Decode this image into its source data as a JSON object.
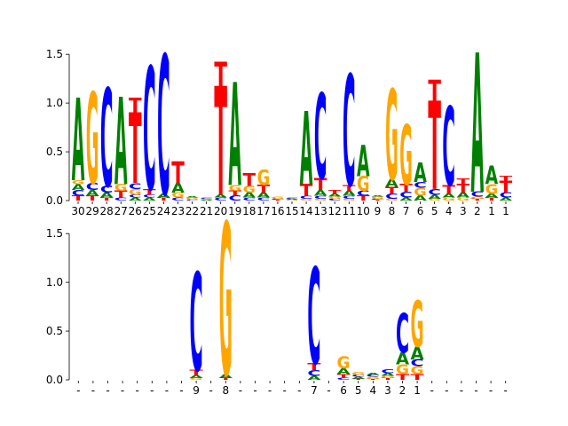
{
  "chart_data": [
    {
      "type": "sequence-logo",
      "ylim": [
        0,
        1.62
      ],
      "yticks": [
        0.0,
        0.5,
        1.0,
        1.5
      ],
      "ytick_labels": [
        "0.0",
        "0.5",
        "1.0",
        "1.5"
      ],
      "grid": false,
      "colors": {
        "A": "#008000",
        "C": "#0000ff",
        "G": "#ffa500",
        "T": "#ff0000"
      },
      "positions": [
        {
          "label": "30",
          "letters": [
            [
              "T",
              0.05
            ],
            [
              "C",
              0.06
            ],
            [
              "A",
              0.06
            ],
            [
              "G",
              0.04
            ],
            [
              "A",
              0.84
            ]
          ]
        },
        {
          "label": "29",
          "letters": [
            [
              "T",
              0.05
            ],
            [
              "A",
              0.06
            ],
            [
              "C",
              0.07
            ],
            [
              "G",
              0.93
            ]
          ]
        },
        {
          "label": "28",
          "letters": [
            [
              "T",
              0.03
            ],
            [
              "A",
              0.05
            ],
            [
              "C",
              0.07
            ],
            [
              "C",
              1.0
            ]
          ]
        },
        {
          "label": "27",
          "letters": [
            [
              "C",
              0.03
            ],
            [
              "T",
              0.07
            ],
            [
              "G",
              0.07
            ],
            [
              "A",
              0.89
            ]
          ]
        },
        {
          "label": "26",
          "letters": [
            [
              "A",
              0.03
            ],
            [
              "C",
              0.03
            ],
            [
              "G",
              0.06
            ],
            [
              "C",
              0.06
            ],
            [
              "T",
              0.72
            ],
            [
              "T",
              0.15
            ]
          ]
        },
        {
          "label": "25",
          "letters": [
            [
              "A",
              0.03
            ],
            [
              "C",
              0.03
            ],
            [
              "T",
              0.06
            ],
            [
              "C",
              1.25
            ]
          ]
        },
        {
          "label": "24",
          "letters": [
            [
              "T",
              0.03
            ],
            [
              "A",
              0.04
            ],
            [
              "C",
              1.42
            ]
          ]
        },
        {
          "label": "23",
          "letters": [
            [
              "C",
              0.03
            ],
            [
              "G",
              0.05
            ],
            [
              "A",
              0.1
            ],
            [
              "T",
              0.22
            ]
          ]
        },
        {
          "label": "22",
          "letters": [
            [
              "C",
              0.01
            ],
            [
              "G",
              0.02
            ],
            [
              "A",
              0.01
            ]
          ]
        },
        {
          "label": "21",
          "letters": [
            [
              "A",
              0.01
            ],
            [
              "G",
              0.01
            ],
            [
              "C",
              0.01
            ]
          ]
        },
        {
          "label": "20",
          "letters": [
            [
              "C",
              0.03
            ],
            [
              "A",
              0.03
            ],
            [
              "T",
              1.11
            ],
            [
              "T",
              0.25
            ]
          ]
        },
        {
          "label": "19",
          "letters": [
            [
              "C",
              0.05
            ],
            [
              "T",
              0.05
            ],
            [
              "G",
              0.06
            ],
            [
              "A",
              1.05
            ]
          ]
        },
        {
          "label": "18",
          "letters": [
            [
              "C",
              0.03
            ],
            [
              "A",
              0.05
            ],
            [
              "G",
              0.07
            ],
            [
              "T",
              0.13
            ]
          ]
        },
        {
          "label": "17",
          "letters": [
            [
              "C",
              0.03
            ],
            [
              "A",
              0.05
            ],
            [
              "T",
              0.08
            ],
            [
              "G",
              0.16
            ]
          ]
        },
        {
          "label": "16",
          "letters": [
            [
              "T",
              0.01
            ],
            [
              "C",
              0.01
            ],
            [
              "G",
              0.02
            ]
          ]
        },
        {
          "label": "15",
          "letters": [
            [
              "G",
              0.01
            ],
            [
              "A",
              0.01
            ],
            [
              "C",
              0.01
            ]
          ]
        },
        {
          "label": "14",
          "letters": [
            [
              "G",
              0.02
            ],
            [
              "C",
              0.03
            ],
            [
              "T",
              0.12
            ],
            [
              "A",
              0.75
            ]
          ]
        },
        {
          "label": "13",
          "letters": [
            [
              "G",
              0.02
            ],
            [
              "C",
              0.03
            ],
            [
              "A",
              0.06
            ],
            [
              "T",
              0.12
            ],
            [
              "C",
              0.87
            ]
          ]
        },
        {
          "label": "12",
          "letters": [
            [
              "C",
              0.02
            ],
            [
              "G",
              0.02
            ],
            [
              "A",
              0.03
            ],
            [
              "T",
              0.04
            ]
          ]
        },
        {
          "label": "11",
          "letters": [
            [
              "G",
              0.02
            ],
            [
              "C",
              0.03
            ],
            [
              "A",
              0.05
            ],
            [
              "T",
              0.06
            ],
            [
              "C",
              1.13
            ]
          ]
        },
        {
          "label": "10",
          "letters": [
            [
              "T",
              0.05
            ],
            [
              "C",
              0.05
            ],
            [
              "G",
              0.15
            ],
            [
              "A",
              0.32
            ]
          ]
        },
        {
          "label": "9",
          "letters": [
            [
              "T",
              0.01
            ],
            [
              "C",
              0.01
            ],
            [
              "G",
              0.02
            ],
            [
              "A",
              0.01
            ]
          ]
        },
        {
          "label": "8",
          "letters": [
            [
              "G",
              0.02
            ],
            [
              "C",
              0.05
            ],
            [
              "T",
              0.07
            ],
            [
              "A",
              0.08
            ],
            [
              "G",
              0.92
            ]
          ]
        },
        {
          "label": "7",
          "letters": [
            [
              "A",
              0.03
            ],
            [
              "C",
              0.06
            ],
            [
              "T",
              0.08
            ],
            [
              "G",
              0.61
            ]
          ]
        },
        {
          "label": "6",
          "letters": [
            [
              "A",
              0.05
            ],
            [
              "G",
              0.08
            ],
            [
              "C",
              0.06
            ],
            [
              "A",
              0.2
            ]
          ]
        },
        {
          "label": "5",
          "letters": [
            [
              "G",
              0.02
            ],
            [
              "A",
              0.04
            ],
            [
              "C",
              0.06
            ],
            [
              "T",
              0.9
            ],
            [
              "T",
              0.22
            ]
          ]
        },
        {
          "label": "4",
          "letters": [
            [
              "G",
              0.03
            ],
            [
              "A",
              0.04
            ],
            [
              "T",
              0.09
            ],
            [
              "C",
              0.8
            ]
          ]
        },
        {
          "label": "3",
          "letters": [
            [
              "G",
              0.03
            ],
            [
              "A",
              0.05
            ],
            [
              "T",
              0.09
            ],
            [
              "T",
              0.06
            ]
          ]
        },
        {
          "label": "2",
          "letters": [
            [
              "T",
              0.02
            ],
            [
              "G",
              0.02
            ],
            [
              "C",
              0.05
            ],
            [
              "A",
              1.42
            ]
          ]
        },
        {
          "label": "1",
          "letters": [
            [
              "T",
              0.03
            ],
            [
              "A",
              0.04
            ],
            [
              "G",
              0.1
            ],
            [
              "A",
              0.19
            ]
          ]
        },
        {
          "label": "1",
          "letters": [
            [
              "A",
              0.03
            ],
            [
              "C",
              0.05
            ],
            [
              "T",
              0.12
            ],
            [
              "T",
              0.05
            ]
          ]
        }
      ]
    },
    {
      "type": "sequence-logo",
      "ylim": [
        0,
        1.62
      ],
      "yticks": [
        0.0,
        0.5,
        1.0,
        1.5
      ],
      "ytick_labels": [
        "0.0",
        "0.5",
        "1.0",
        "1.5"
      ],
      "grid": false,
      "colors": {
        "A": "#008000",
        "C": "#0000ff",
        "G": "#ffa500",
        "T": "#ff0000"
      },
      "positions": [
        {
          "label": "-",
          "letters": []
        },
        {
          "label": "-",
          "letters": []
        },
        {
          "label": "-",
          "letters": []
        },
        {
          "label": "-",
          "letters": []
        },
        {
          "label": "-",
          "letters": []
        },
        {
          "label": "-",
          "letters": []
        },
        {
          "label": "-",
          "letters": []
        },
        {
          "label": "-",
          "letters": []
        },
        {
          "label": "9",
          "letters": [
            [
              "G",
              0.02
            ],
            [
              "A",
              0.03
            ],
            [
              "T",
              0.05
            ],
            [
              "C",
              1.0
            ]
          ]
        },
        {
          "label": "-",
          "letters": []
        },
        {
          "label": "8",
          "letters": [
            [
              "T",
              0.02
            ],
            [
              "A",
              0.04
            ],
            [
              "G",
              1.55
            ]
          ]
        },
        {
          "label": "-",
          "letters": []
        },
        {
          "label": "-",
          "letters": []
        },
        {
          "label": "-",
          "letters": []
        },
        {
          "label": "-",
          "letters": []
        },
        {
          "label": "-",
          "letters": []
        },
        {
          "label": "7",
          "letters": [
            [
              "A",
              0.04
            ],
            [
              "C",
              0.06
            ],
            [
              "T",
              0.07
            ],
            [
              "C",
              0.98
            ]
          ]
        },
        {
          "label": "-",
          "letters": []
        },
        {
          "label": "6",
          "letters": [
            [
              "C",
              0.02
            ],
            [
              "T",
              0.04
            ],
            [
              "A",
              0.06
            ],
            [
              "G",
              0.12
            ]
          ]
        },
        {
          "label": "5",
          "letters": [
            [
              "T",
              0.01
            ],
            [
              "A",
              0.02
            ],
            [
              "C",
              0.02
            ],
            [
              "G",
              0.03
            ]
          ]
        },
        {
          "label": "4",
          "letters": [
            [
              "T",
              0.01
            ],
            [
              "G",
              0.02
            ],
            [
              "C",
              0.02
            ],
            [
              "A",
              0.02
            ]
          ]
        },
        {
          "label": "3",
          "letters": [
            [
              "T",
              0.02
            ],
            [
              "G",
              0.02
            ],
            [
              "A",
              0.03
            ],
            [
              "C",
              0.04
            ]
          ]
        },
        {
          "label": "2",
          "letters": [
            [
              "T",
              0.06
            ],
            [
              "G",
              0.1
            ],
            [
              "A",
              0.12
            ],
            [
              "C",
              0.4
            ]
          ]
        },
        {
          "label": "1",
          "letters": [
            [
              "T",
              0.06
            ],
            [
              "G",
              0.08
            ],
            [
              "C",
              0.07
            ],
            [
              "A",
              0.13
            ],
            [
              "G",
              0.47
            ]
          ]
        },
        {
          "label": "-",
          "letters": []
        },
        {
          "label": "-",
          "letters": []
        },
        {
          "label": "-",
          "letters": []
        },
        {
          "label": "-",
          "letters": []
        },
        {
          "label": "-",
          "letters": []
        },
        {
          "label": "-",
          "letters": []
        }
      ]
    }
  ]
}
